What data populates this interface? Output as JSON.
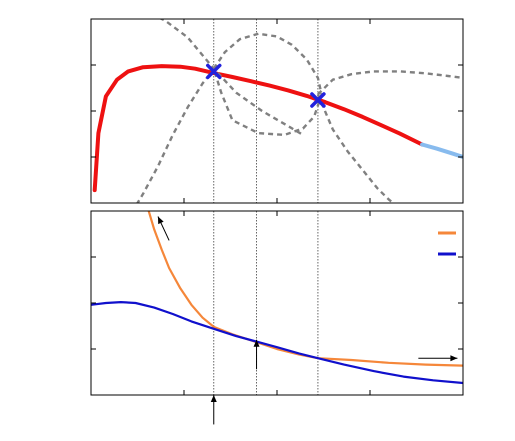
{
  "colors": {
    "red": "#ee1111",
    "light_blue": "#88bbee",
    "gray_dashed": "#808080",
    "orange": "#f5873a",
    "blue": "#1010cc",
    "marker": "#2222dd",
    "frame": "#000000"
  },
  "chart_data": [
    {
      "type": "line",
      "panel": "top",
      "xlim": [
        0,
        1
      ],
      "ylim": [
        0,
        1
      ],
      "grid": false,
      "legend": "none",
      "series": [
        {
          "style": "solid",
          "color": "red",
          "x": [
            0.01,
            0.02,
            0.04,
            0.07,
            0.1,
            0.14,
            0.19,
            0.24,
            0.28,
            0.33,
            0.38,
            0.43,
            0.48,
            0.53,
            0.58,
            0.63,
            0.68,
            0.73,
            0.78,
            0.83,
            0.89
          ],
          "y": [
            0.07,
            0.38,
            0.58,
            0.67,
            0.715,
            0.738,
            0.744,
            0.741,
            0.73,
            0.706,
            0.685,
            0.662,
            0.638,
            0.612,
            0.582,
            0.548,
            0.51,
            0.468,
            0.423,
            0.377,
            0.318
          ]
        },
        {
          "style": "solid",
          "color": "light_blue",
          "x": [
            0.89,
            0.93,
            0.97,
            1.0
          ],
          "y": [
            0.318,
            0.295,
            0.27,
            0.25
          ]
        },
        {
          "style": "dashed",
          "color": "gray_dashed",
          "x": [
            0.14,
            0.2,
            0.26,
            0.33,
            0.39,
            0.46,
            0.52,
            0.57
          ],
          "y": [
            1.05,
            0.99,
            0.9,
            0.73,
            0.6,
            0.5,
            0.43,
            0.37
          ]
        },
        {
          "style": "dashed",
          "color": "gray_dashed",
          "x": [
            0.11,
            0.14,
            0.18,
            0.22,
            0.26,
            0.3,
            0.33
          ],
          "y": [
            -0.05,
            0.05,
            0.2,
            0.37,
            0.52,
            0.65,
            0.73
          ]
        },
        {
          "style": "dashed",
          "color": "gray_dashed",
          "x": [
            0.33,
            0.36,
            0.4,
            0.45,
            0.5,
            0.54,
            0.58,
            0.61,
            0.62,
            0.6,
            0.57,
            0.52,
            0.45,
            0.38,
            0.35,
            0.33
          ],
          "y": [
            0.73,
            0.82,
            0.89,
            0.92,
            0.905,
            0.86,
            0.78,
            0.68,
            0.59,
            0.47,
            0.405,
            0.37,
            0.38,
            0.45,
            0.6,
            0.73
          ]
        },
        {
          "style": "dashed",
          "color": "gray_dashed",
          "x": [
            0.61,
            0.65,
            0.7,
            0.76,
            0.83,
            0.9,
            0.96,
            1.0
          ],
          "y": [
            0.59,
            0.67,
            0.7,
            0.715,
            0.715,
            0.705,
            0.69,
            0.68
          ]
        },
        {
          "style": "dashed",
          "color": "gray_dashed",
          "x": [
            0.61,
            0.65,
            0.69,
            0.73,
            0.77,
            0.8,
            0.83
          ],
          "y": [
            0.59,
            0.4,
            0.28,
            0.18,
            0.08,
            0.02,
            -0.03
          ]
        }
      ],
      "markers": [
        {
          "x": 0.33,
          "y": 0.715
        },
        {
          "x": 0.61,
          "y": 0.56
        }
      ],
      "vlines": [
        0.33,
        0.445,
        0.61
      ]
    },
    {
      "type": "line",
      "panel": "bottom",
      "xlim": [
        0,
        1
      ],
      "ylim": [
        0,
        1
      ],
      "grid": false,
      "legend": "top-right",
      "series": [
        {
          "style": "solid",
          "color": "orange",
          "x": [
            0.155,
            0.17,
            0.19,
            0.21,
            0.24,
            0.27,
            0.3,
            0.33,
            0.38,
            0.44,
            0.5,
            0.56,
            0.61,
            0.7,
            0.8,
            0.9,
            1.0
          ],
          "y": [
            1.0,
            0.9,
            0.79,
            0.69,
            0.58,
            0.49,
            0.42,
            0.37,
            0.33,
            0.29,
            0.25,
            0.22,
            0.2,
            0.19,
            0.175,
            0.165,
            0.16
          ]
        },
        {
          "style": "solid",
          "color": "blue",
          "x": [
            0.0,
            0.04,
            0.08,
            0.12,
            0.17,
            0.22,
            0.27,
            0.33,
            0.39,
            0.445,
            0.5,
            0.56,
            0.61,
            0.68,
            0.76,
            0.84,
            0.92,
            1.0
          ],
          "y": [
            0.49,
            0.5,
            0.505,
            0.5,
            0.475,
            0.44,
            0.4,
            0.36,
            0.32,
            0.29,
            0.26,
            0.225,
            0.2,
            0.165,
            0.13,
            0.1,
            0.08,
            0.065
          ]
        }
      ],
      "legend_entries": [
        {
          "color": "orange"
        },
        {
          "color": "blue"
        }
      ],
      "vlines": [
        0.33,
        0.445,
        0.61
      ],
      "arrows": [
        {
          "from": [
            0.21,
            0.84
          ],
          "to": [
            0.18,
            0.97
          ]
        },
        {
          "from": [
            0.445,
            0.14
          ],
          "to": [
            0.445,
            0.3
          ]
        },
        {
          "from": [
            0.88,
            0.2
          ],
          "to": [
            0.985,
            0.2
          ]
        },
        {
          "from": [
            0.33,
            -0.16
          ],
          "to": [
            0.33,
            0.0
          ]
        }
      ]
    }
  ]
}
